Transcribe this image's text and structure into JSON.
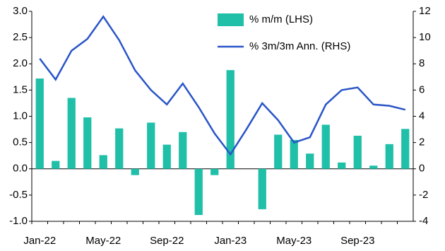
{
  "chart_data": {
    "type": "bar-line",
    "categories": [
      "Jan-22",
      null,
      null,
      null,
      "May-22",
      null,
      null,
      null,
      "Sep-22",
      null,
      null,
      null,
      "Jan-23",
      null,
      null,
      null,
      "May-23",
      null,
      null,
      null,
      "Sep-23",
      null,
      null,
      null
    ],
    "series": [
      {
        "name": "% m/m (LHS)",
        "color": "#1fbfa8",
        "axis": "y",
        "values": [
          1.72,
          0.15,
          1.35,
          0.98,
          0.26,
          0.77,
          -0.12,
          0.88,
          0.46,
          0.7,
          -0.88,
          -0.12,
          1.88,
          0,
          -0.77,
          0.65,
          0.55,
          0.29,
          0.84,
          0.12,
          0.63,
          0.06,
          0.47,
          0.76
        ]
      },
      {
        "name": "% 3m/3m Ann. (RHS)",
        "color": "#2a55c8",
        "axis": "y2",
        "values": [
          8.4,
          6.8,
          9.0,
          9.9,
          11.6,
          9.8,
          7.5,
          6.0,
          4.9,
          6.5,
          4.7,
          2.7,
          1.1,
          3.0,
          5.0,
          3.7,
          2.0,
          2.4,
          4.9,
          6.0,
          6.2,
          4.9,
          4.8,
          4.5
        ]
      }
    ],
    "ylim": [
      -1,
      3
    ],
    "yticks": [
      {
        "value": -1,
        "label": "-1.0"
      },
      -0.5,
      {
        "value": 0,
        "label": "0.0"
      },
      0.5,
      {
        "value": 1,
        "label": "1.0"
      },
      1.5,
      {
        "value": 2,
        "label": "2.0"
      },
      2.5,
      {
        "value": 3,
        "label": "3.0"
      }
    ],
    "y2lim": [
      -4,
      12
    ],
    "y2ticks": [
      -4,
      -2,
      0,
      2,
      4,
      6,
      8,
      10,
      12
    ],
    "legend": "top"
  }
}
